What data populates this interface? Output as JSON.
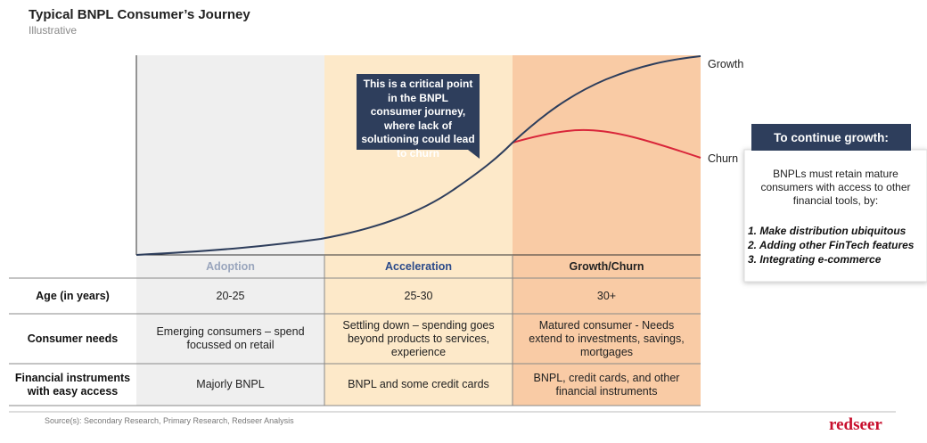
{
  "header": {
    "title": "Typical BNPL Consumer’s Journey",
    "subtitle": "Illustrative"
  },
  "chart": {
    "labels": {
      "growth": "Growth",
      "churn": "Churn"
    },
    "callout": "This is a critical point in the BNPL consumer journey, where lack of solutioning could lead to churn"
  },
  "table": {
    "phases": [
      "Adoption",
      "Acceleration",
      "Growth/Churn"
    ],
    "rows": [
      {
        "label": "Age (in years)",
        "cells": [
          "20-25",
          "25-30",
          "30+"
        ]
      },
      {
        "label": "Consumer needs",
        "cells": [
          "Emerging consumers – spend focussed on retail",
          "Settling down – spending goes beyond products to services, experience",
          "Matured consumer - Needs extend to investments, savings, mortgages"
        ]
      },
      {
        "label": "Financial instruments with easy access",
        "cells": [
          "Majorly BNPL",
          "BNPL and some credit cards",
          "BNPL, credit cards, and other financial instruments"
        ]
      }
    ]
  },
  "side_box": {
    "title": "To continue growth:",
    "intro": "BNPLs must retain mature consumers with access to other financial tools, by:",
    "items": [
      "1. Make distribution ubiquitous",
      "2. Adding other FinTech features",
      "3. Integrating e-commerce"
    ]
  },
  "footer": {
    "source": "Source(s): Secondary Research, Primary Research, Redseer Analysis",
    "logo": "redseer"
  }
}
